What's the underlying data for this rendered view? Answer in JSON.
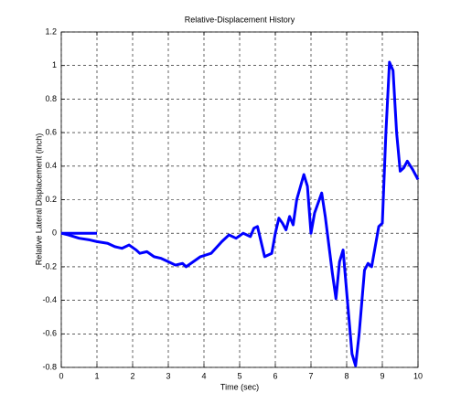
{
  "chart_data": {
    "type": "line",
    "title": "Relative-Displacement History",
    "x_label": "Time (sec)",
    "y_label": "Relative Lateral Displacement (inch)",
    "series": [
      {
        "color": "#0000ff",
        "x": [
          0,
          0.25,
          0.5,
          0.75,
          1.0
        ],
        "values": [
          0,
          0,
          0,
          0,
          0
        ]
      },
      {
        "color": "#0000ff",
        "x": [
          0,
          0.2,
          0.5,
          0.8,
          1.0,
          1.3,
          1.5,
          1.7,
          1.9,
          2.1,
          2.2,
          2.4,
          2.6,
          2.8,
          3.0,
          3.2,
          3.4,
          3.5,
          3.7,
          3.9,
          4.2,
          4.5,
          4.7,
          4.9,
          5.1,
          5.3,
          5.4,
          5.5,
          5.7,
          5.9,
          6.0,
          6.1,
          6.2,
          6.3,
          6.4,
          6.5,
          6.6,
          6.8,
          6.9,
          7.0,
          7.1,
          7.3,
          7.4,
          7.6,
          7.7,
          7.8,
          7.9,
          8.0,
          8.15,
          8.25,
          8.35,
          8.5,
          8.6,
          8.7,
          8.9,
          9.0,
          9.1,
          9.2,
          9.3,
          9.4,
          9.5,
          9.6,
          9.7,
          9.85,
          10.0
        ],
        "values": [
          0,
          -0.01,
          -0.03,
          -0.04,
          -0.05,
          -0.06,
          -0.08,
          -0.09,
          -0.07,
          -0.1,
          -0.12,
          -0.11,
          -0.14,
          -0.15,
          -0.17,
          -0.19,
          -0.18,
          -0.2,
          -0.17,
          -0.14,
          -0.12,
          -0.05,
          -0.01,
          -0.03,
          0.0,
          -0.02,
          0.03,
          0.04,
          -0.14,
          -0.12,
          0.0,
          0.09,
          0.06,
          0.02,
          0.1,
          0.05,
          0.2,
          0.35,
          0.28,
          0.0,
          0.12,
          0.24,
          0.1,
          -0.24,
          -0.39,
          -0.17,
          -0.1,
          -0.35,
          -0.72,
          -0.79,
          -0.6,
          -0.22,
          -0.18,
          -0.2,
          0.04,
          0.06,
          0.6,
          1.02,
          0.97,
          0.6,
          0.37,
          0.39,
          0.43,
          0.38,
          0.32
        ]
      }
    ],
    "xlim": [
      0,
      10
    ],
    "xticks": [
      0,
      1,
      2,
      3,
      4,
      5,
      6,
      7,
      8,
      9,
      10
    ],
    "ylim": [
      -0.8,
      1.2
    ],
    "yticks": [
      -0.8,
      -0.6,
      -0.4,
      -0.2,
      0,
      0.2,
      0.4,
      0.6,
      0.8,
      1,
      1.2
    ],
    "grid": true
  }
}
